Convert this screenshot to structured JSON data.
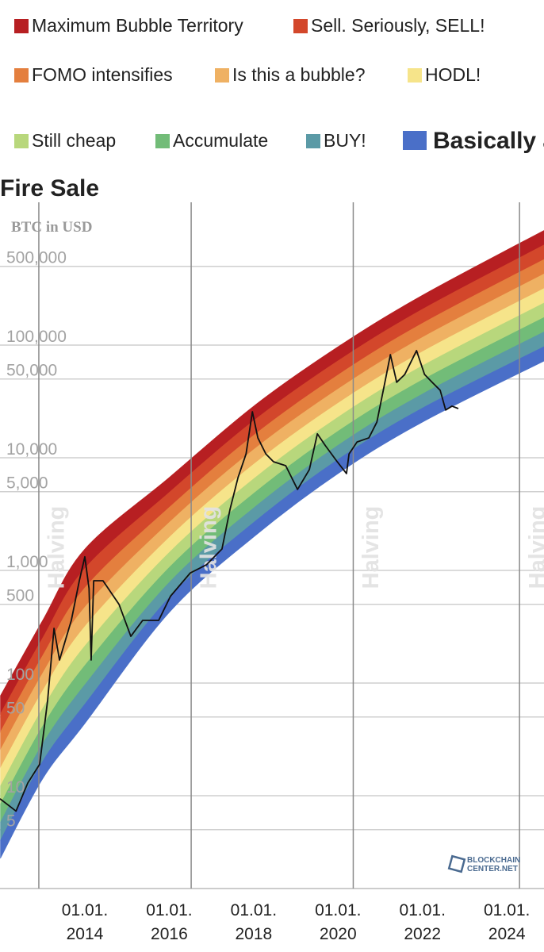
{
  "chart_data": {
    "type": "rainbow",
    "y_label": "BTC in USD",
    "log_y": true,
    "grid": true,
    "xlim": [
      2011.99,
      2024.88
    ],
    "ylim": [
      1.5,
      1850000
    ],
    "xticks": [
      {
        "value": 2014,
        "label": "01.01. 2014"
      },
      {
        "value": 2016,
        "label": "01.01. 2016"
      },
      {
        "value": 2018,
        "label": "01.01. 2018"
      },
      {
        "value": 2020,
        "label": "01.01. 2020"
      },
      {
        "value": 2022,
        "label": "01.01. 2022"
      },
      {
        "value": 2024,
        "label": "01.01. 2024"
      }
    ],
    "yticks": [
      {
        "value": 500000,
        "label": "500,000"
      },
      {
        "value": 100000,
        "label": "100,000"
      },
      {
        "value": 50000,
        "label": "50,000"
      },
      {
        "value": 10000,
        "label": "10,000"
      },
      {
        "value": 5000,
        "label": "5,000"
      },
      {
        "value": 1000,
        "label": "1,000"
      },
      500,
      100,
      50,
      10,
      5
    ],
    "halvings": [
      {
        "value": 2012.91,
        "label": "Halving"
      },
      {
        "value": 2016.52,
        "label": "Halving"
      },
      {
        "value": 2020.36,
        "label": "Halving"
      },
      {
        "value": 2024.3,
        "label": "Halving"
      }
    ],
    "band_x": [
      2012,
      2013,
      2014,
      2016,
      2018,
      2020,
      2022,
      2025
    ],
    "band_floor": [
      2.78,
      14.1,
      43.7,
      423,
      1980,
      7230,
      20700,
      75900
    ],
    "series": [
      {
        "name": "Maximum Bubble Territory",
        "color": "#b71f22",
        "values": [
          77.2,
          360,
          1546,
          6680,
          28700,
          96700,
          277000,
          1100000
        ]
      },
      {
        "name": "Sell. Seriously, SELL!",
        "color": "#d3472b",
        "values": [
          53.4,
          251,
          1040,
          4920,
          21300,
          72500,
          208000,
          817000
        ]
      },
      {
        "name": "FOMO intensifies",
        "color": "#e47f3e",
        "values": [
          36.9,
          175,
          700,
          3620,
          15800,
          54300,
          156000,
          607000
        ]
      },
      {
        "name": "Is this a bubble?",
        "color": "#efb163",
        "values": [
          25.5,
          122,
          471,
          2660,
          11800,
          40700,
          117000,
          451000
        ]
      },
      {
        "name": "HODL!",
        "color": "#f6e48a",
        "values": [
          17.6,
          85.2,
          317,
          1960,
          8740,
          30500,
          87400,
          335000
        ]
      },
      {
        "name": "Still cheap",
        "color": "#b8d77c",
        "values": [
          12.2,
          59.4,
          213,
          1440,
          6490,
          22900,
          65500,
          249000
        ]
      },
      {
        "name": "Accumulate",
        "color": "#72bc78",
        "values": [
          8.42,
          41.4,
          143,
          1060,
          4820,
          17200,
          49100,
          185000
        ]
      },
      {
        "name": "BUY!",
        "color": "#5b9aa6",
        "values": [
          5.82,
          28.9,
          96.5,
          781,
          3580,
          12900,
          36800,
          138000
        ]
      },
      {
        "name": "Basically a Fire Sale",
        "color": "#4a6fc8",
        "values": [
          4.02,
          20.2,
          64.9,
          575,
          2660,
          9650,
          27600,
          102000
        ]
      }
    ],
    "price": {
      "color": "#111111",
      "x": [
        2011.99,
        2012.37,
        2012.65,
        2012.93,
        2013.12,
        2013.27,
        2013.4,
        2013.68,
        2013.87,
        2014.0,
        2014.1,
        2014.15,
        2014.21,
        2014.43,
        2014.81,
        2015.09,
        2015.37,
        2015.75,
        2016.03,
        2016.5,
        2016.88,
        2017.25,
        2017.44,
        2017.63,
        2017.82,
        2017.97,
        2018.1,
        2018.29,
        2018.47,
        2018.76,
        2019.04,
        2019.32,
        2019.51,
        2019.7,
        2019.98,
        2020.2,
        2020.26,
        2020.45,
        2020.73,
        2020.92,
        2021.11,
        2021.24,
        2021.39,
        2021.58,
        2021.86,
        2022.05,
        2022.23,
        2022.42,
        2022.55,
        2022.7,
        2022.85
      ],
      "values": [
        9.4,
        7.3,
        13,
        19,
        71,
        306,
        160,
        360,
        810,
        1320,
        690,
        160,
        810,
        810,
        500,
        260,
        360,
        360,
        590,
        950,
        1120,
        1550,
        3480,
        6670,
        10800,
        25600,
        15000,
        10800,
        9220,
        8500,
        5230,
        7840,
        16300,
        12800,
        9220,
        7230,
        10800,
        13800,
        15000,
        20700,
        46700,
        82200,
        46700,
        54800,
        89300,
        54800,
        46700,
        39700,
        26500,
        28700,
        27300
      ]
    },
    "watermark": [
      "BLOCKCHAIN",
      "CENTER.NET"
    ]
  }
}
